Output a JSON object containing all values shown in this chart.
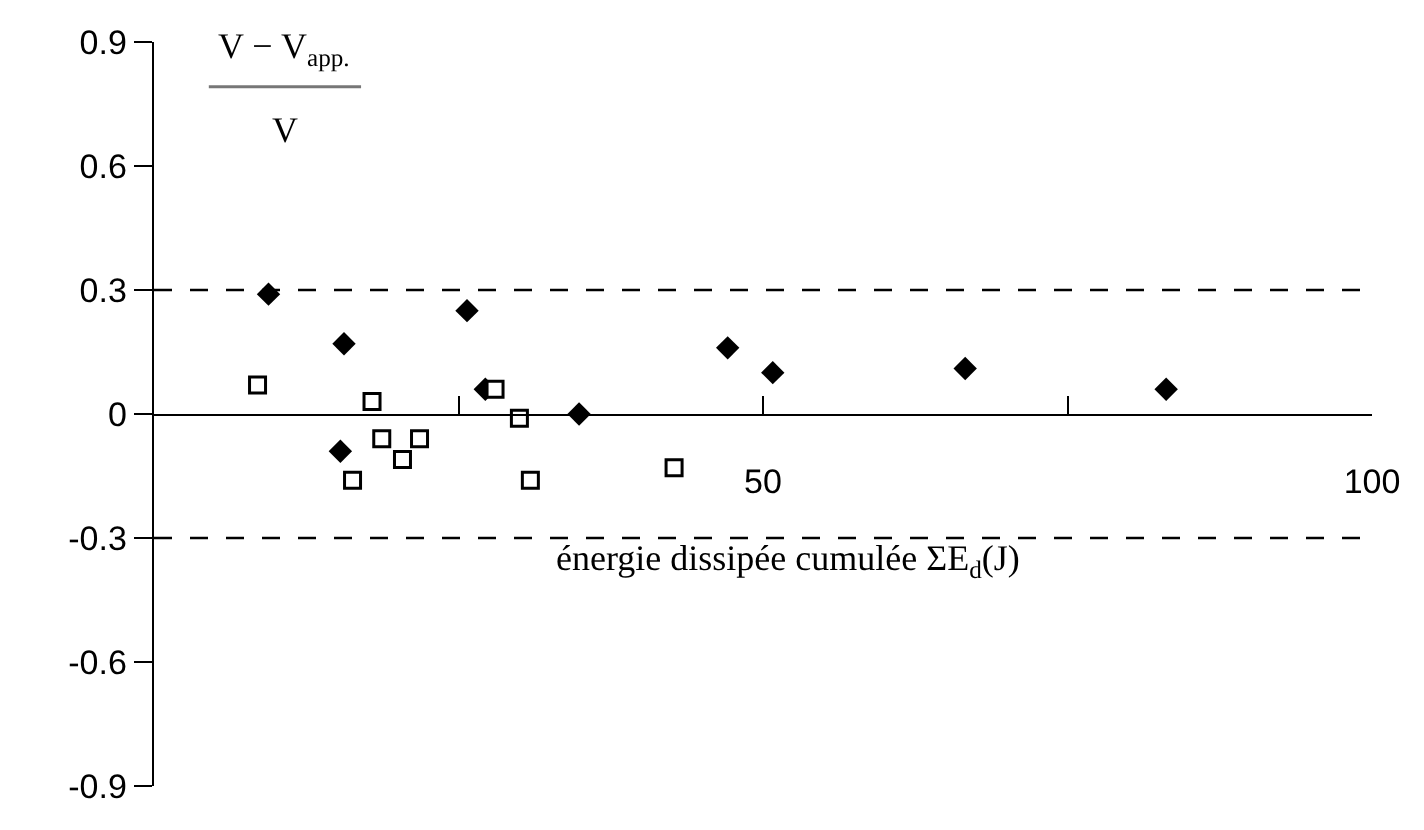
{
  "chart_data": {
    "type": "scatter",
    "ylabel": "V − V$_{app.}$",
    "annotations": [
      "V"
    ],
    "xlabel": "énergie dissipée cumulée ΣE$_{d}$(J)",
    "xlim": [
      0,
      100
    ],
    "xticks": [
      {
        "value": 25,
        "label": null
      },
      50,
      {
        "value": 75,
        "label": null
      },
      100
    ],
    "ylim": [
      -0.9,
      0.9
    ],
    "yticks": [
      0.9,
      0.6,
      0.3,
      0,
      -0.3,
      -0.6,
      -0.9
    ],
    "legend": false,
    "ref_lines": [
      {
        "axis": "y",
        "value": 0.3,
        "line_style": "dashed",
        "color": "#000000"
      },
      {
        "axis": "y",
        "value": -0.3,
        "line_style": "dashed",
        "color": "#000000"
      }
    ],
    "series": [
      {
        "color": "#000000",
        "marker": "diamond",
        "x": [
          9.4,
          15.6,
          15.3,
          25.7,
          27.2,
          34.9,
          47.1,
          50.8,
          66.6,
          83.1
        ],
        "values": [
          0.29,
          0.17,
          -0.09,
          0.25,
          0.06,
          0,
          0.16,
          0.1,
          0.11,
          0.06
        ]
      },
      {
        "color": "#000000",
        "marker": "square-open",
        "x": [
          8.5,
          17.9,
          18.7,
          16.3,
          21.8,
          20.4,
          28.0,
          30.0,
          30.9,
          42.7
        ],
        "values": [
          0.07,
          0.03,
          -0.06,
          -0.16,
          -0.06,
          -0.11,
          0.06,
          -0.01,
          -0.16,
          -0.13
        ]
      }
    ]
  }
}
